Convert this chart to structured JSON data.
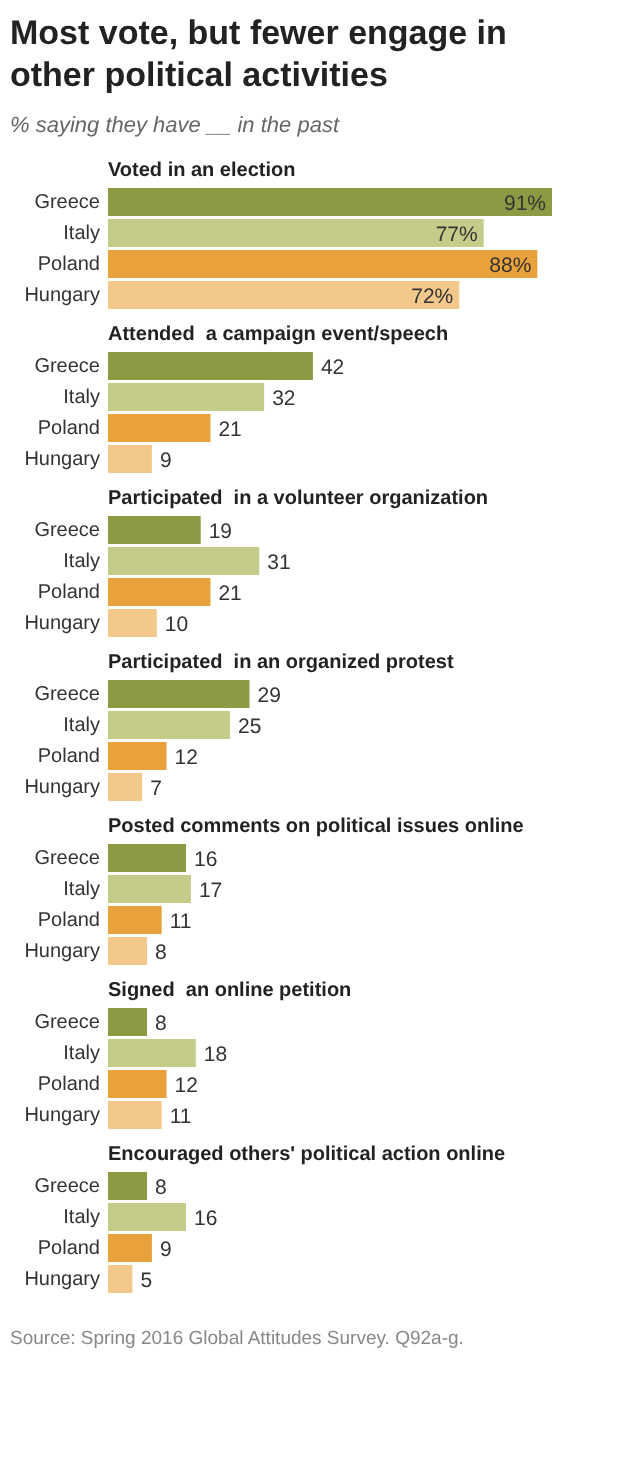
{
  "chart_data": [
    {
      "type": "other",
      "title": "Most vote, but fewer engage in other political activities",
      "subtitle": "% saying they have __ in the past"
    },
    {
      "type": "bar",
      "orientation": "horizontal",
      "title": "Voted in an election",
      "categories": [
        "Greece",
        "Italy",
        "Poland",
        "Hungary"
      ],
      "values": [
        91,
        77,
        88,
        72
      ],
      "colors": [
        "#8c9a44",
        "#c5cc8a",
        "#e9a23b",
        "#f3c98b"
      ],
      "value_labels": [
        "91%",
        "77%",
        "88%",
        "72%"
      ]
    },
    {
      "type": "bar",
      "orientation": "horizontal",
      "title": "Attended  a campaign event/speech",
      "categories": [
        "Greece",
        "Italy",
        "Poland",
        "Hungary"
      ],
      "values": [
        42,
        32,
        21,
        9
      ],
      "colors": [
        "#8c9a44",
        "#c5cc8a",
        "#e9a23b",
        "#f3c98b"
      ],
      "data_labels": true
    },
    {
      "type": "bar",
      "orientation": "horizontal",
      "title": "Participated  in a volunteer organization",
      "categories": [
        "Greece",
        "Italy",
        "Poland",
        "Hungary"
      ],
      "values": [
        19,
        31,
        21,
        10
      ],
      "colors": [
        "#8c9a44",
        "#c5cc8a",
        "#e9a23b",
        "#f3c98b"
      ],
      "data_labels": true
    },
    {
      "type": "bar",
      "orientation": "horizontal",
      "title": "Participated  in an organized protest",
      "categories": [
        "Greece",
        "Italy",
        "Poland",
        "Hungary"
      ],
      "values": [
        29,
        25,
        12,
        7
      ],
      "colors": [
        "#8c9a44",
        "#c5cc8a",
        "#e9a23b",
        "#f3c98b"
      ],
      "data_labels": true
    },
    {
      "type": "bar",
      "orientation": "horizontal",
      "title": "Posted comments on political issues online",
      "categories": [
        "Greece",
        "Italy",
        "Poland",
        "Hungary"
      ],
      "values": [
        16,
        17,
        11,
        8
      ],
      "colors": [
        "#8c9a44",
        "#c5cc8a",
        "#e9a23b",
        "#f3c98b"
      ],
      "data_labels": true
    },
    {
      "type": "bar",
      "orientation": "horizontal",
      "title": "Signed  an online petition",
      "categories": [
        "Greece",
        "Italy",
        "Poland",
        "Hungary"
      ],
      "values": [
        8,
        18,
        12,
        11
      ],
      "colors": [
        "#8c9a44",
        "#c5cc8a",
        "#e9a23b",
        "#f3c98b"
      ],
      "data_labels": true
    },
    {
      "type": "bar",
      "orientation": "horizontal",
      "title": "Encouraged others' political action online",
      "categories": [
        "Greece",
        "Italy",
        "Poland",
        "Hungary"
      ],
      "values": [
        8,
        16,
        9,
        5
      ],
      "colors": [
        "#8c9a44",
        "#c5cc8a",
        "#e9a23b",
        "#f3c98b"
      ],
      "data_labels": true,
      "annotations": [
        "Source: Spring 2016 Global Attitudes Survey. Q92a-g."
      ]
    }
  ]
}
